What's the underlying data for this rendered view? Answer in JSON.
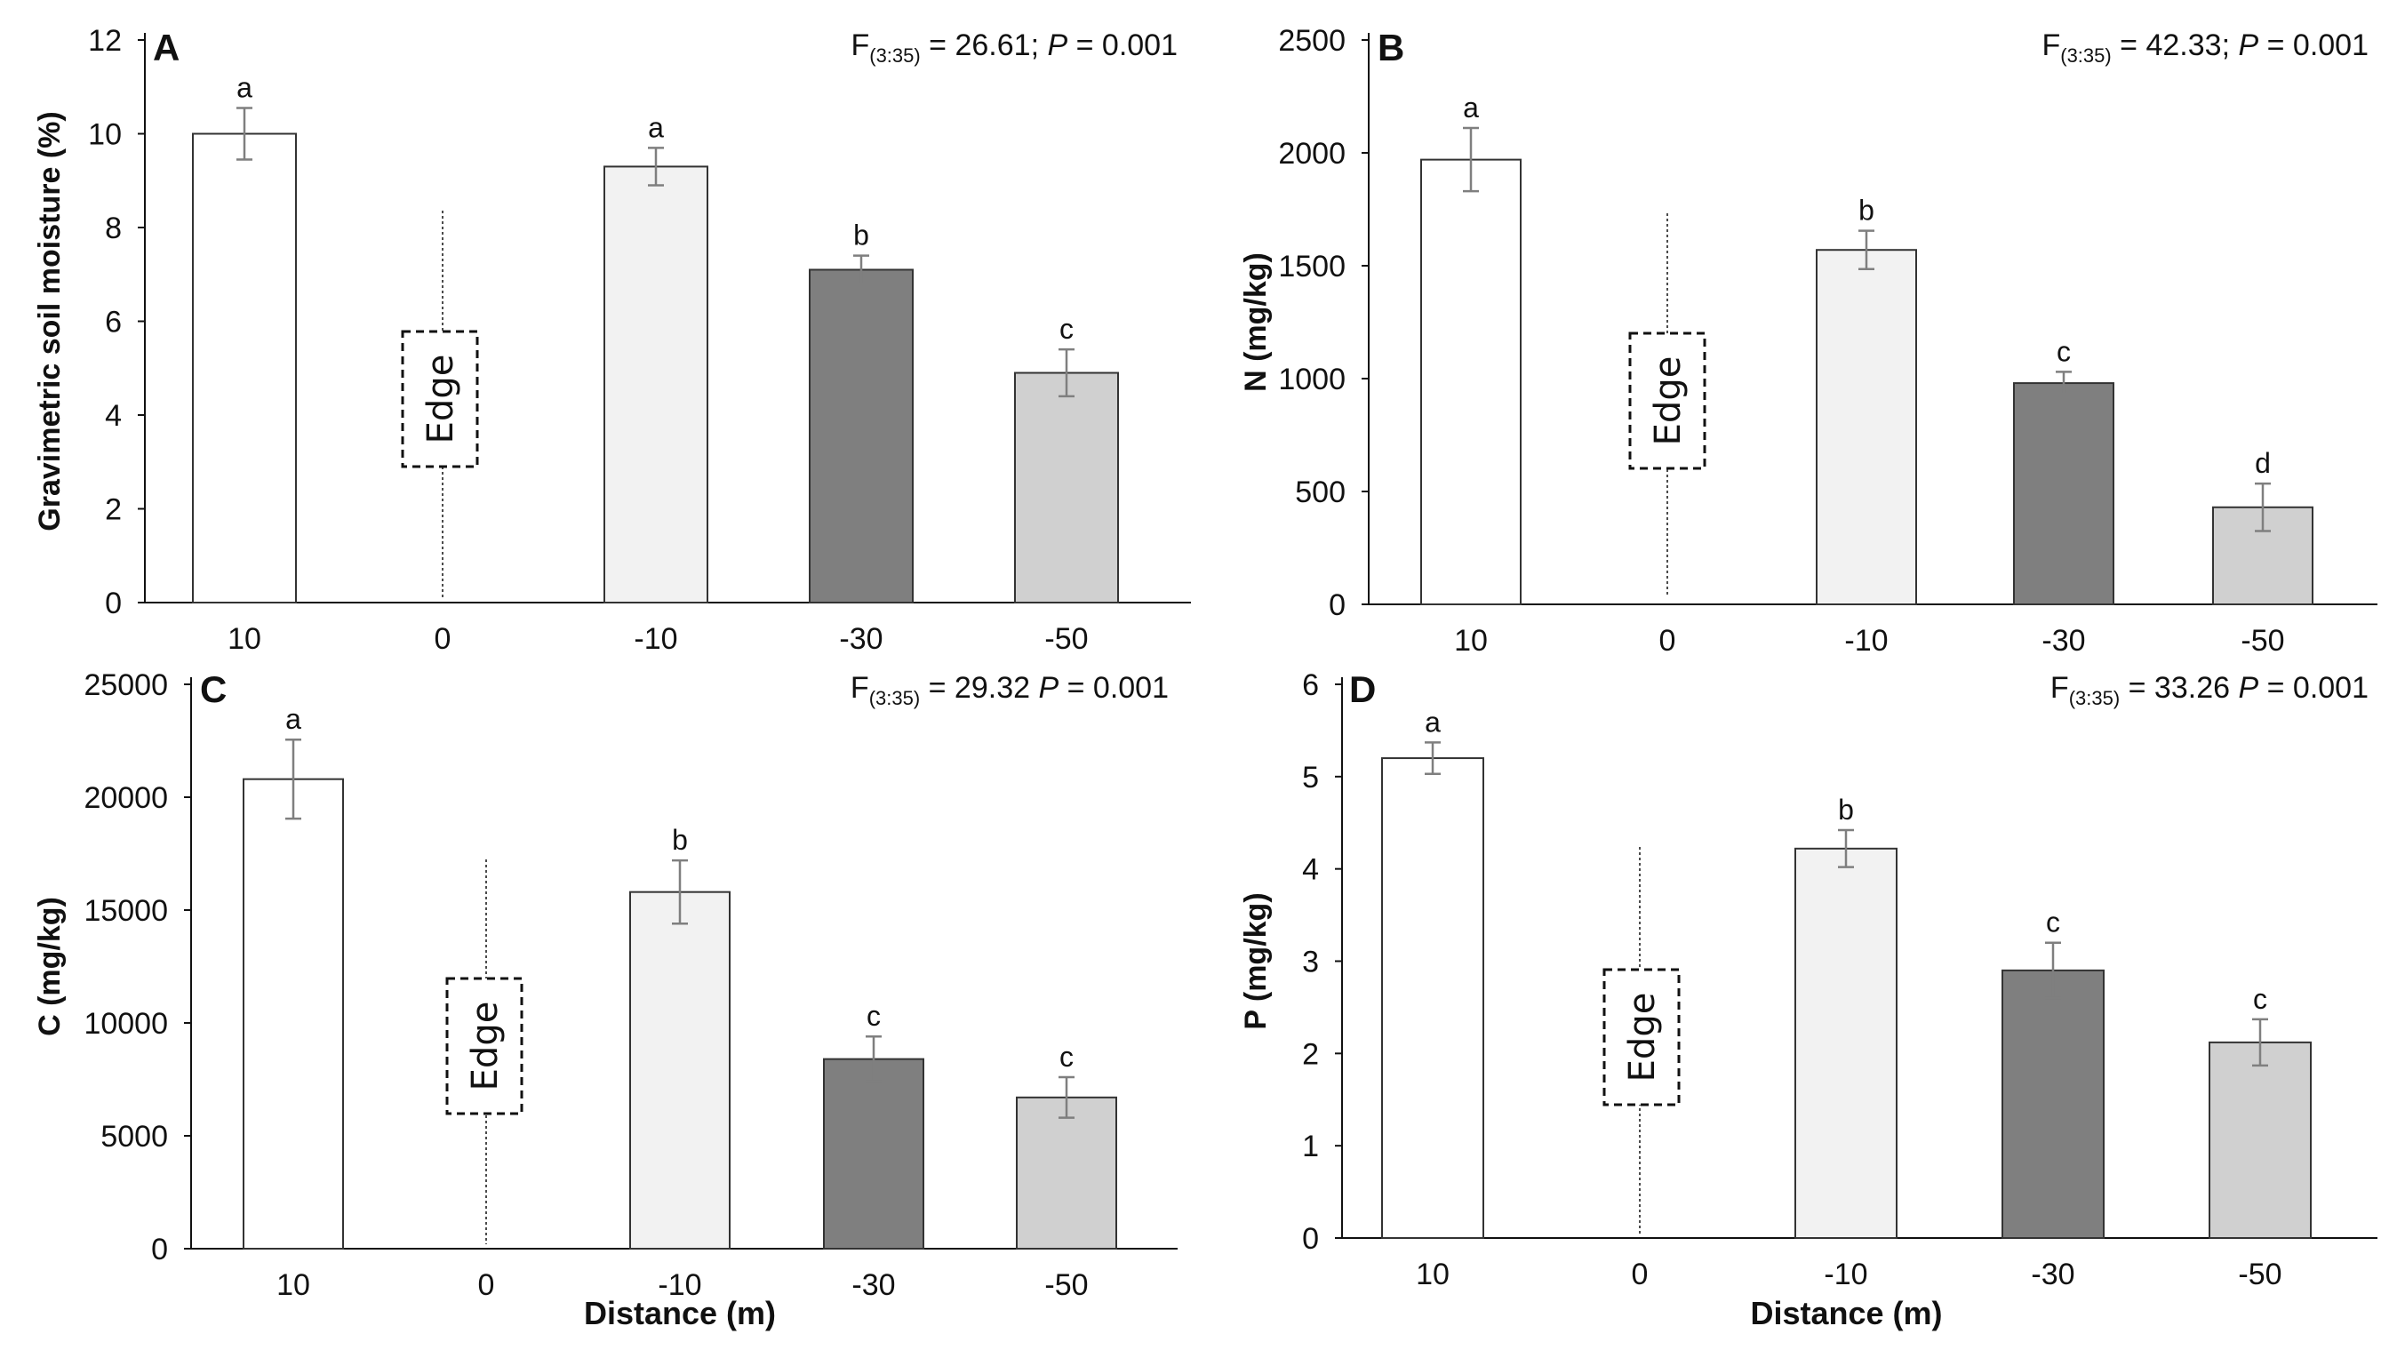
{
  "chart_data": [
    {
      "panel": "A",
      "type": "bar",
      "categories": [
        "10",
        "0",
        "-10",
        "-30",
        "-50"
      ],
      "values": [
        10.0,
        null,
        9.3,
        7.1,
        4.9
      ],
      "errors": [
        0.55,
        null,
        0.4,
        0.3,
        0.5
      ],
      "letters": [
        "a",
        "",
        "a",
        "b",
        "c"
      ],
      "colors": [
        "#ffffff",
        null,
        "#f2f2f2",
        "#7f7f7f",
        "#d0d0d0"
      ],
      "ylabel": "Gravimetric soil moisture (%)",
      "ylim": [
        0,
        12
      ],
      "yticks": [
        "0",
        "2",
        "4",
        "6",
        "8",
        "10",
        "12"
      ],
      "edge_label": "Edge",
      "stat": {
        "f": "F",
        "sub": "(3:35)",
        "mid": " = 26.61; ",
        "p": "P",
        "tail": " = 0.001"
      }
    },
    {
      "panel": "B",
      "type": "bar",
      "categories": [
        "10",
        "0",
        "-10",
        "-30",
        "-50"
      ],
      "values": [
        1970,
        null,
        1570,
        980,
        430
      ],
      "errors": [
        140,
        null,
        85,
        50,
        105
      ],
      "letters": [
        "a",
        "",
        "b",
        "c",
        "d"
      ],
      "colors": [
        "#ffffff",
        null,
        "#f2f2f2",
        "#7f7f7f",
        "#d0d0d0"
      ],
      "ylabel": "N (mg/kg)",
      "ylim": [
        0,
        2500
      ],
      "yticks": [
        "0",
        "500",
        "1000",
        "1500",
        "2000",
        "2500"
      ],
      "edge_label": "Edge",
      "stat": {
        "f": "F",
        "sub": "(3:35)",
        "mid": " = 42.33; ",
        "p": "P",
        "tail": " = 0.001"
      }
    },
    {
      "panel": "C",
      "type": "bar",
      "categories": [
        "10",
        "0",
        "-10",
        "-30",
        "-50"
      ],
      "values": [
        20800,
        null,
        15800,
        8400,
        6700
      ],
      "errors": [
        1750,
        null,
        1400,
        1000,
        900
      ],
      "letters": [
        "a",
        "",
        "b",
        "c",
        "c"
      ],
      "colors": [
        "#ffffff",
        null,
        "#f2f2f2",
        "#7f7f7f",
        "#d0d0d0"
      ],
      "ylabel": "C (mg/kg)",
      "xlabel": "Distance (m)",
      "ylim": [
        0,
        25000
      ],
      "yticks": [
        "0",
        "5000",
        "10000",
        "15000",
        "20000",
        "25000"
      ],
      "edge_label": "Edge",
      "stat": {
        "f": "F",
        "sub": "(3:35)",
        "mid": " = 29.32 ",
        "p": "P",
        "tail": " = 0.001"
      }
    },
    {
      "panel": "D",
      "type": "bar",
      "categories": [
        "10",
        "0",
        "-10",
        "-30",
        "-50"
      ],
      "values": [
        5.2,
        null,
        4.22,
        2.9,
        2.12
      ],
      "errors": [
        0.17,
        null,
        0.2,
        0.3,
        0.25
      ],
      "letters": [
        "a",
        "",
        "b",
        "c",
        "c"
      ],
      "colors": [
        "#ffffff",
        null,
        "#f2f2f2",
        "#7f7f7f",
        "#d0d0d0"
      ],
      "ylabel": "P (mg/kg)",
      "xlabel": "Distance (m)",
      "ylim": [
        0,
        6
      ],
      "yticks": [
        "0",
        "1",
        "2",
        "3",
        "4",
        "5",
        "6"
      ],
      "edge_label": "Edge",
      "stat": {
        "f": "F",
        "sub": "(3:35)",
        "mid": " = 33.26 ",
        "p": "P",
        "tail": " = 0.001"
      }
    }
  ]
}
